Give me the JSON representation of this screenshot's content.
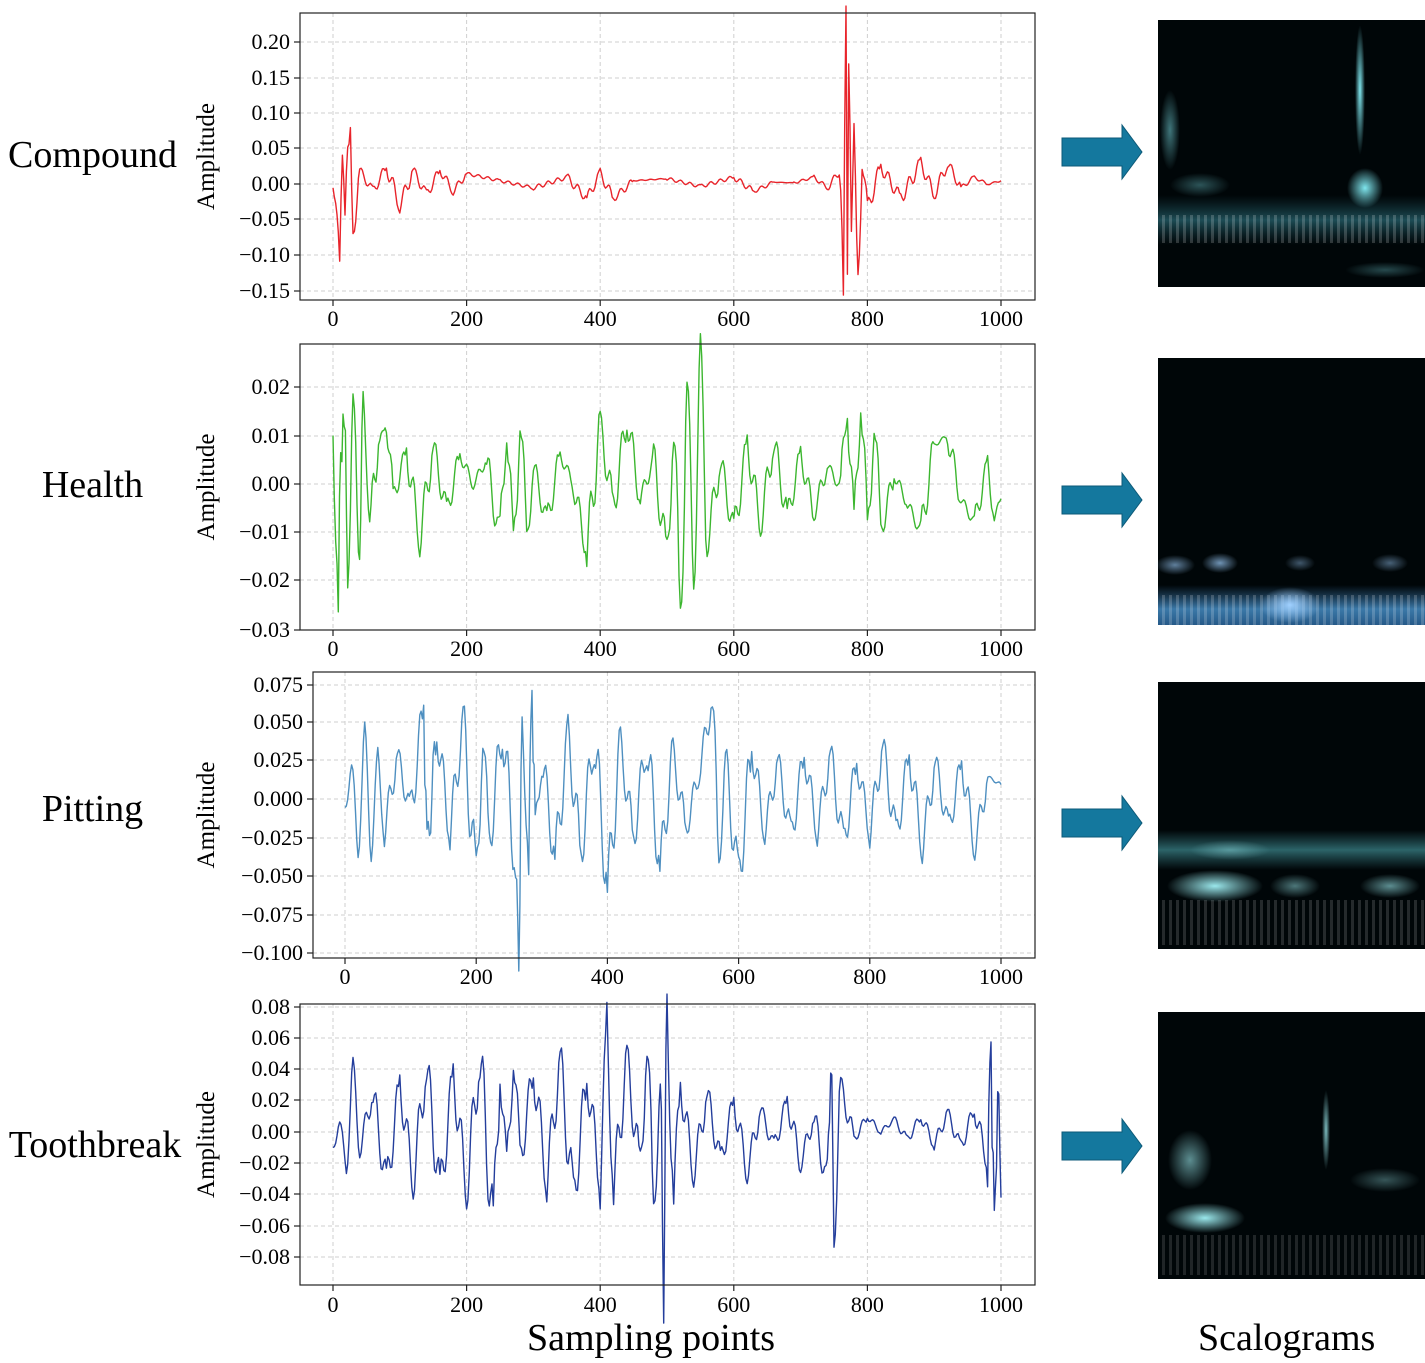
{
  "figure": {
    "xlabel": "Sampling points",
    "scalograms_label": "Scalograms"
  },
  "chart_data": [
    {
      "type": "line",
      "row_label": "Compound",
      "ylabel": "Amplitude",
      "color": "#e8242b",
      "xlim": [
        0,
        1000
      ],
      "ylim": [
        -0.15,
        0.22
      ],
      "xticks": [
        "0",
        "200",
        "400",
        "600",
        "800",
        "1000"
      ],
      "yticks": [
        "0.20",
        "0.15",
        "0.10",
        "0.05",
        "0.00",
        "−0.05",
        "−0.10",
        "−0.15"
      ],
      "grid": true,
      "x": [
        0,
        6,
        10,
        14,
        18,
        22,
        26,
        30,
        40,
        60,
        80,
        100,
        120,
        140,
        160,
        180,
        200,
        250,
        300,
        350,
        380,
        400,
        420,
        450,
        500,
        550,
        600,
        630,
        660,
        690,
        720,
        740,
        760,
        764,
        768,
        770,
        772,
        776,
        780,
        786,
        792,
        800,
        820,
        850,
        880,
        900,
        920,
        940,
        960,
        980,
        1000
      ],
      "y": [
        -0.005,
        -0.03,
        -0.09,
        0.04,
        -0.06,
        0.05,
        0.06,
        -0.07,
        0.02,
        -0.01,
        0.025,
        -0.03,
        0.02,
        -0.015,
        0.02,
        -0.01,
        0.015,
        0.005,
        -0.005,
        0.01,
        -0.02,
        0.015,
        -0.02,
        0.005,
        0.008,
        -0.003,
        0.01,
        -0.01,
        0.003,
        0.002,
        0.01,
        -0.005,
        0.02,
        -0.13,
        0.22,
        -0.145,
        0.16,
        -0.09,
        0.05,
        -0.12,
        0.035,
        -0.035,
        0.025,
        -0.02,
        0.03,
        -0.015,
        0.03,
        -0.005,
        0.01,
        0.0,
        0.005
      ]
    },
    {
      "type": "line",
      "row_label": "Health",
      "ylabel": "Amplitude",
      "color": "#3cb62f",
      "xlim": [
        0,
        1000
      ],
      "ylim": [
        -0.03,
        0.027
      ],
      "xticks": [
        "0",
        "200",
        "400",
        "600",
        "800",
        "1000"
      ],
      "yticks": [
        "0.02",
        "0.01",
        "0.00",
        "−0.01",
        "−0.02",
        "−0.03"
      ],
      "grid": true,
      "x": [
        0,
        8,
        15,
        22,
        30,
        38,
        45,
        55,
        70,
        80,
        90,
        110,
        130,
        150,
        170,
        190,
        210,
        230,
        250,
        260,
        270,
        280,
        290,
        300,
        320,
        340,
        360,
        380,
        400,
        420,
        440,
        460,
        480,
        500,
        510,
        520,
        530,
        540,
        550,
        560,
        580,
        600,
        620,
        640,
        660,
        680,
        700,
        720,
        740,
        760,
        770,
        780,
        790,
        800,
        810,
        820,
        840,
        860,
        880,
        900,
        920,
        940,
        960,
        980,
        990,
        1000
      ],
      "y": [
        0.01,
        -0.021,
        0.023,
        -0.018,
        0.02,
        -0.019,
        0.015,
        -0.005,
        0.008,
        0.014,
        -0.003,
        0.007,
        -0.011,
        0.008,
        -0.006,
        0.006,
        0.0,
        0.005,
        -0.012,
        0.015,
        -0.016,
        0.016,
        -0.012,
        0.004,
        -0.008,
        0.006,
        0.0,
        -0.014,
        0.012,
        -0.005,
        0.014,
        -0.003,
        0.005,
        -0.015,
        0.012,
        -0.027,
        0.02,
        -0.018,
        0.026,
        -0.012,
        0.005,
        -0.01,
        0.008,
        -0.008,
        0.009,
        -0.007,
        0.006,
        -0.006,
        0.004,
        -0.001,
        0.019,
        -0.012,
        0.022,
        -0.013,
        0.015,
        -0.01,
        0.002,
        -0.004,
        -0.01,
        0.008,
        0.01,
        -0.003,
        -0.008,
        0.004,
        -0.007,
        -0.003
      ]
    },
    {
      "type": "line",
      "row_label": "Pitting",
      "ylabel": "Amplitude",
      "color": "#4e8fc0",
      "xlim": [
        0,
        1000
      ],
      "ylim": [
        -0.1,
        0.075
      ],
      "xticks": [
        "0",
        "200",
        "400",
        "600",
        "800",
        "1000"
      ],
      "yticks": [
        "0.075",
        "0.050",
        "0.025",
        "0.000",
        "−0.025",
        "−0.050",
        "−0.075",
        "−0.100"
      ],
      "grid": true,
      "x": [
        0,
        10,
        20,
        30,
        40,
        50,
        60,
        80,
        100,
        120,
        125,
        140,
        160,
        180,
        200,
        210,
        220,
        240,
        260,
        265,
        270,
        280,
        285,
        290,
        300,
        320,
        340,
        360,
        380,
        400,
        420,
        440,
        460,
        480,
        500,
        520,
        540,
        560,
        570,
        580,
        600,
        620,
        640,
        660,
        680,
        700,
        720,
        740,
        760,
        780,
        800,
        820,
        840,
        860,
        880,
        900,
        920,
        940,
        960,
        980,
        1000
      ],
      "y": [
        -0.005,
        0.02,
        -0.03,
        0.04,
        -0.03,
        0.025,
        -0.02,
        0.03,
        -0.01,
        0.062,
        -0.035,
        0.045,
        -0.02,
        0.05,
        -0.055,
        0.045,
        -0.03,
        0.05,
        -0.045,
        -0.095,
        0.04,
        -0.03,
        0.075,
        -0.02,
        0.03,
        -0.04,
        0.04,
        -0.035,
        0.045,
        -0.06,
        0.035,
        -0.025,
        0.04,
        -0.045,
        0.03,
        -0.02,
        0.02,
        0.065,
        -0.04,
        0.025,
        -0.055,
        0.035,
        -0.02,
        0.025,
        -0.025,
        0.03,
        -0.02,
        0.03,
        -0.03,
        0.025,
        -0.02,
        0.035,
        -0.025,
        0.03,
        -0.03,
        0.025,
        -0.02,
        0.025,
        -0.03,
        0.015,
        0.01
      ]
    },
    {
      "type": "line",
      "row_label": "Toothbreak",
      "ylabel": "Amplitude",
      "color": "#243e9c",
      "xlim": [
        0,
        1000
      ],
      "ylim": [
        -0.09,
        0.08
      ],
      "xticks": [
        "0",
        "200",
        "400",
        "600",
        "800",
        "1000"
      ],
      "yticks": [
        "0.08",
        "0.06",
        "0.04",
        "0.02",
        "0.00",
        "−0.02",
        "−0.04",
        "−0.06",
        "−0.08"
      ],
      "grid": true,
      "x": [
        0,
        10,
        20,
        30,
        40,
        60,
        80,
        100,
        120,
        140,
        160,
        180,
        200,
        220,
        240,
        250,
        260,
        270,
        280,
        300,
        320,
        340,
        360,
        380,
        400,
        410,
        420,
        440,
        460,
        470,
        480,
        490,
        495,
        500,
        510,
        520,
        540,
        560,
        580,
        600,
        620,
        640,
        660,
        680,
        700,
        720,
        740,
        745,
        750,
        760,
        780,
        800,
        820,
        840,
        860,
        880,
        900,
        920,
        940,
        960,
        980,
        985,
        990,
        995,
        1000
      ],
      "y": [
        -0.01,
        0.005,
        -0.02,
        0.04,
        -0.01,
        0.025,
        -0.035,
        0.03,
        -0.03,
        0.043,
        -0.04,
        0.035,
        -0.035,
        0.05,
        -0.065,
        0.045,
        -0.03,
        0.055,
        -0.02,
        0.04,
        -0.03,
        0.045,
        -0.045,
        0.035,
        -0.03,
        0.065,
        -0.035,
        0.045,
        -0.025,
        0.06,
        -0.05,
        0.03,
        -0.09,
        0.073,
        -0.04,
        0.03,
        -0.025,
        0.025,
        -0.02,
        0.02,
        -0.025,
        0.015,
        -0.01,
        0.02,
        -0.02,
        0.01,
        -0.035,
        0.055,
        -0.065,
        0.03,
        -0.005,
        0.01,
        0.0,
        0.008,
        -0.005,
        0.01,
        -0.008,
        0.012,
        -0.01,
        0.015,
        -0.02,
        0.061,
        -0.072,
        0.035,
        -0.042
      ]
    }
  ]
}
